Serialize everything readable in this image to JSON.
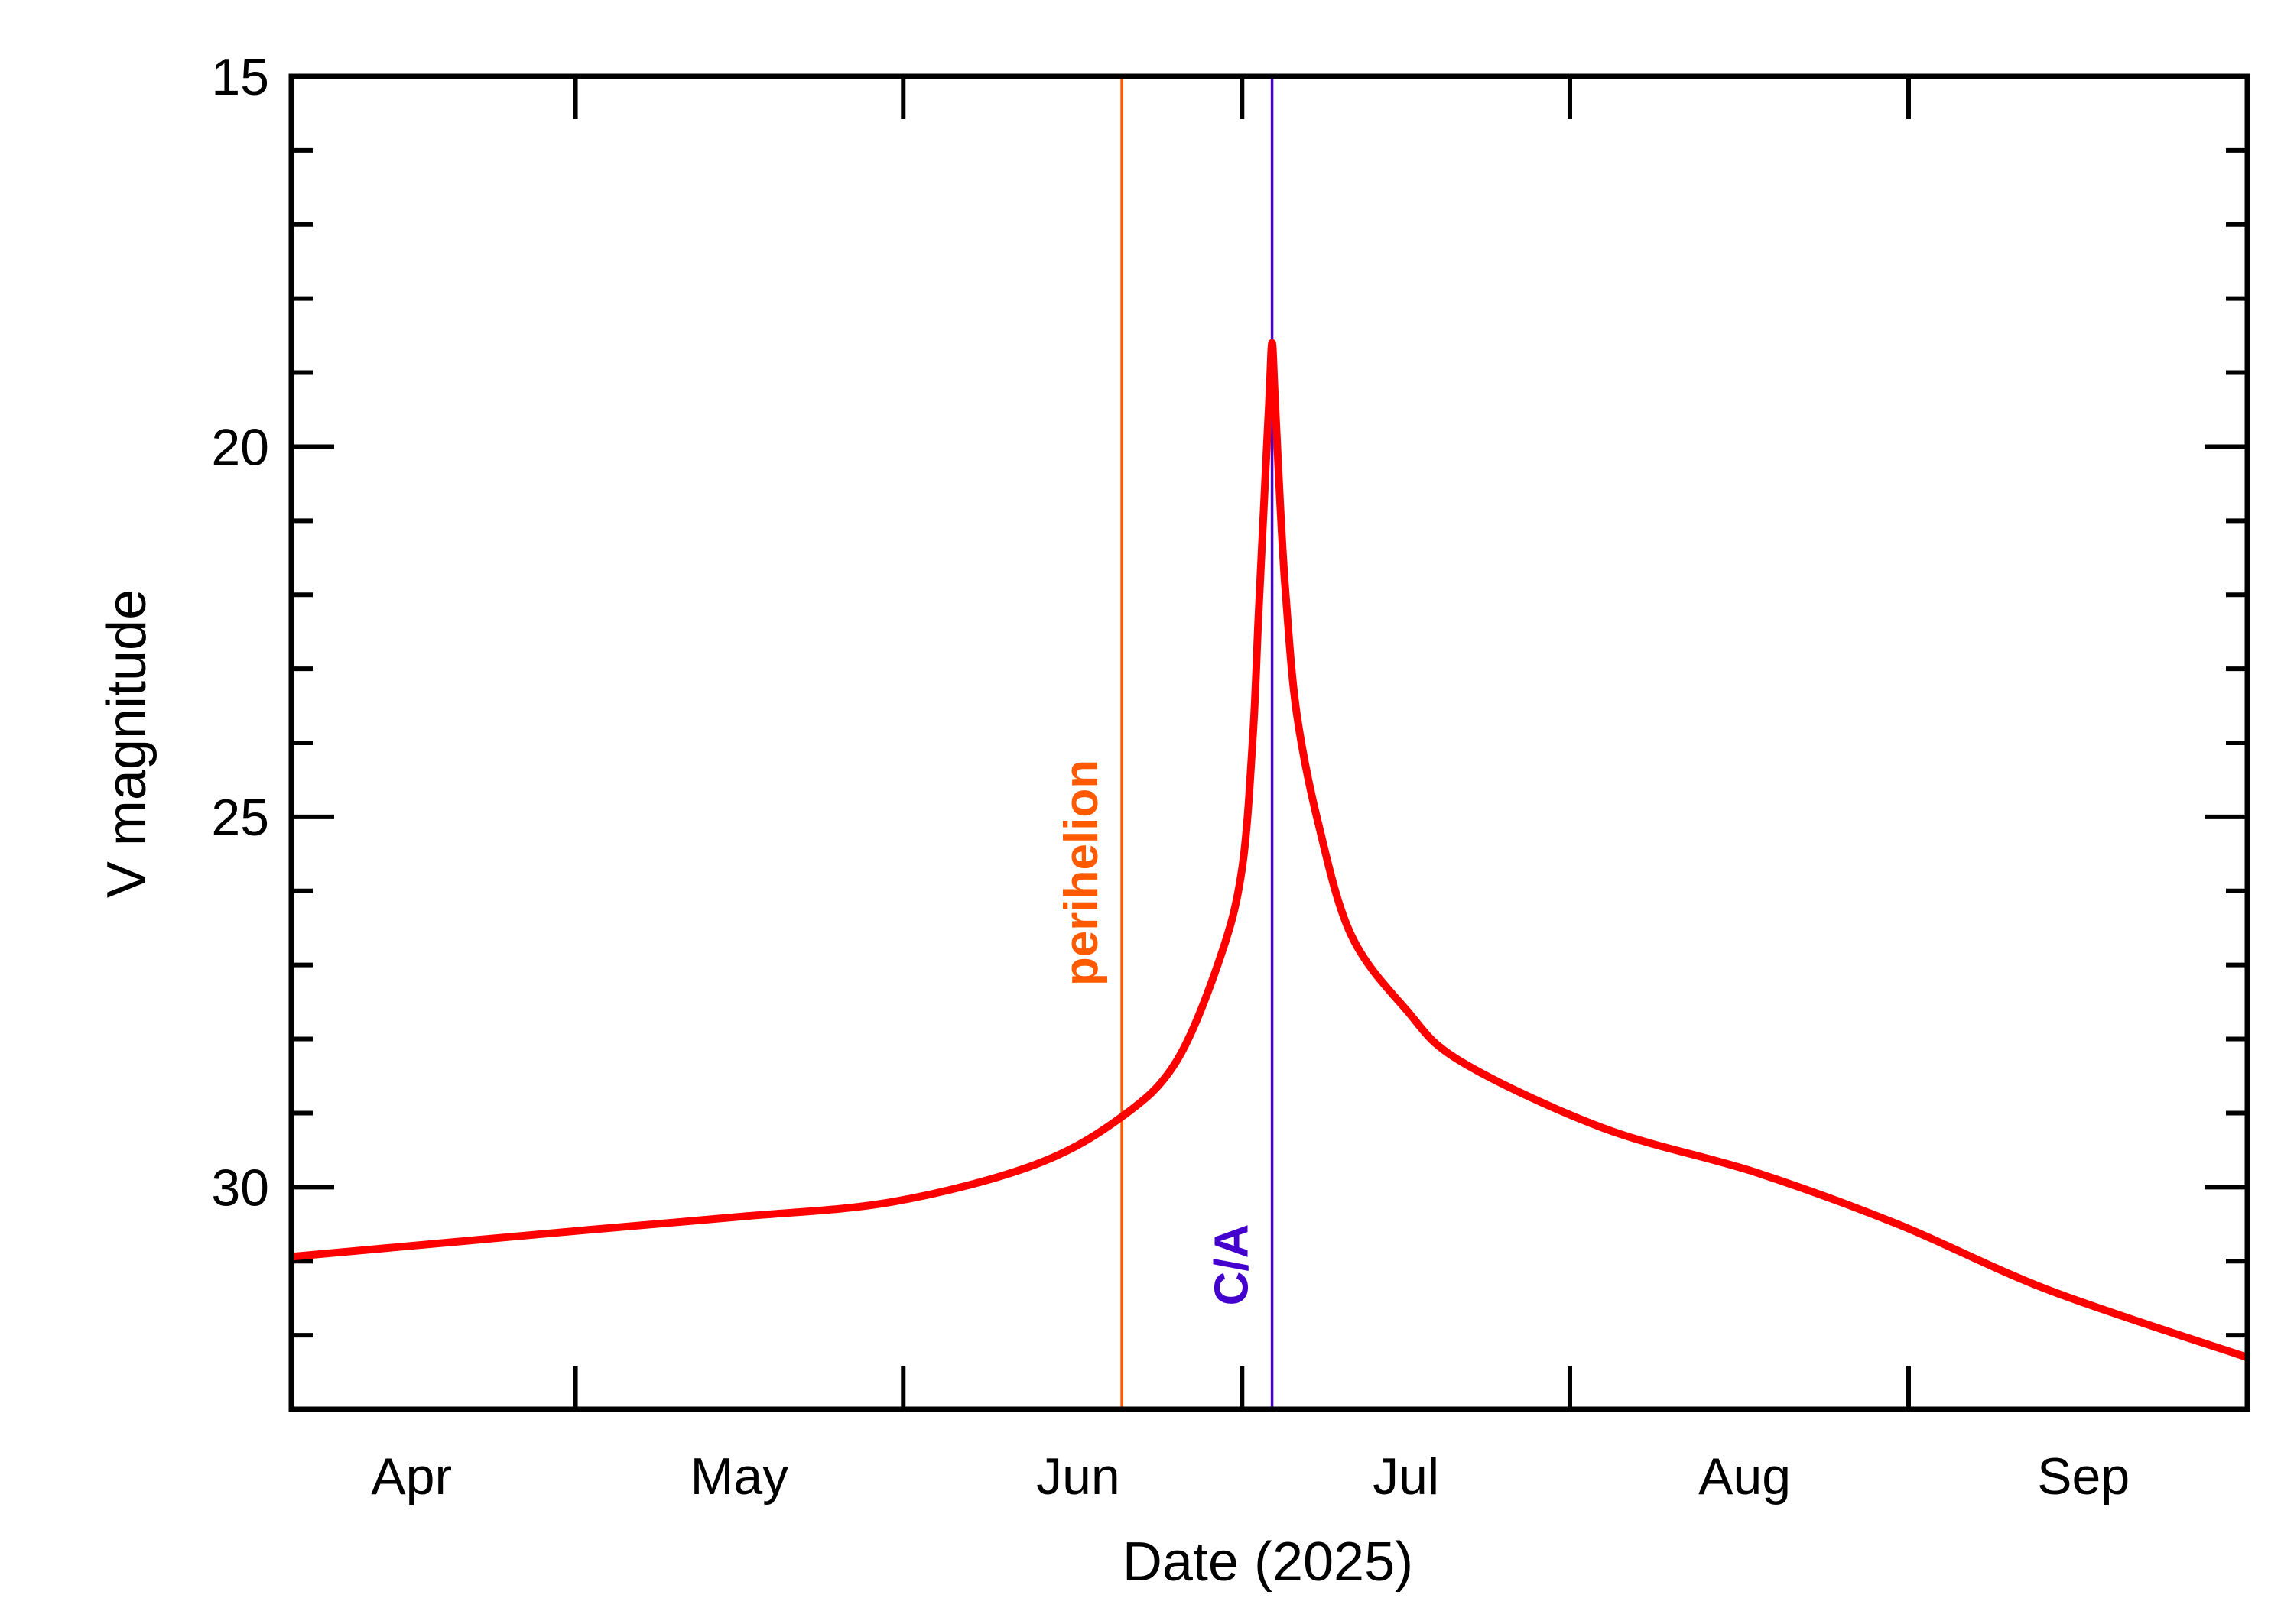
{
  "chart_data": {
    "type": "line",
    "title": "",
    "xlabel": "Date (2025)",
    "ylabel": "V magnitude",
    "xlim": [
      "2025-03-21",
      "2025-09-16"
    ],
    "ylim": [
      33,
      15
    ],
    "y_reversed": true,
    "grid": false,
    "y_ticks": [
      15,
      20,
      25,
      30
    ],
    "y_tick_labels": [
      "15",
      "20",
      "25",
      "30"
    ],
    "y_minor_step": 1,
    "x_tick_labels": [
      {
        "label": "Apr",
        "date": "2025-04-01"
      },
      {
        "label": "May",
        "date": "2025-05-01"
      },
      {
        "label": "Jun",
        "date": "2025-06-01"
      },
      {
        "label": "Jul",
        "date": "2025-07-01"
      },
      {
        "label": "Aug",
        "date": "2025-08-01"
      },
      {
        "label": "Sep",
        "date": "2025-09-01"
      }
    ],
    "x_tick_dates": [
      "2025-04-16",
      "2025-05-16",
      "2025-06-16",
      "2025-07-16",
      "2025-08-16",
      "2025-09-16"
    ],
    "series": [
      {
        "color": "#ff0000",
        "points": [
          [
            "2025-03-21T00:00",
            30.94
          ],
          [
            "2025-04-17T00:00",
            30.58
          ],
          [
            "2025-05-01T00:00",
            30.4
          ],
          [
            "2025-05-15T00:00",
            30.2
          ],
          [
            "2025-05-28T00:00",
            29.7
          ],
          [
            "2025-06-05T00:00",
            29.05
          ],
          [
            "2025-06-10T00:00",
            28.3
          ],
          [
            "2025-06-14T00:00",
            26.9
          ],
          [
            "2025-06-16T00:00",
            25.7
          ],
          [
            "2025-06-17T00:00",
            23.9
          ],
          [
            "2025-06-17T12:00",
            22.3
          ],
          [
            "2025-06-18T00:00",
            20.8
          ],
          [
            "2025-06-18T12:00",
            19.3
          ],
          [
            "2025-06-18T18:00",
            18.6
          ],
          [
            "2025-06-19T00:00",
            19.3
          ],
          [
            "2025-06-19T12:00",
            20.8
          ],
          [
            "2025-06-20T00:00",
            22.0
          ],
          [
            "2025-06-21T00:00",
            23.6
          ],
          [
            "2025-06-23T00:00",
            25.1
          ],
          [
            "2025-06-26T00:00",
            26.6
          ],
          [
            "2025-07-01T00:00",
            27.6
          ],
          [
            "2025-07-06T00:00",
            28.3
          ],
          [
            "2025-07-19T00:00",
            29.2
          ],
          [
            "2025-08-02T00:00",
            29.8
          ],
          [
            "2025-08-15T00:00",
            30.5
          ],
          [
            "2025-08-29T00:00",
            31.4
          ],
          [
            "2025-09-16T00:00",
            32.3
          ]
        ]
      }
    ],
    "annotations": [
      {
        "label": "perihelion",
        "date": "2025-06-05T00:00",
        "color": "#ff5a00"
      },
      {
        "label": "C/A",
        "date": "2025-06-18T18:00",
        "color": "#4400cc"
      }
    ]
  }
}
